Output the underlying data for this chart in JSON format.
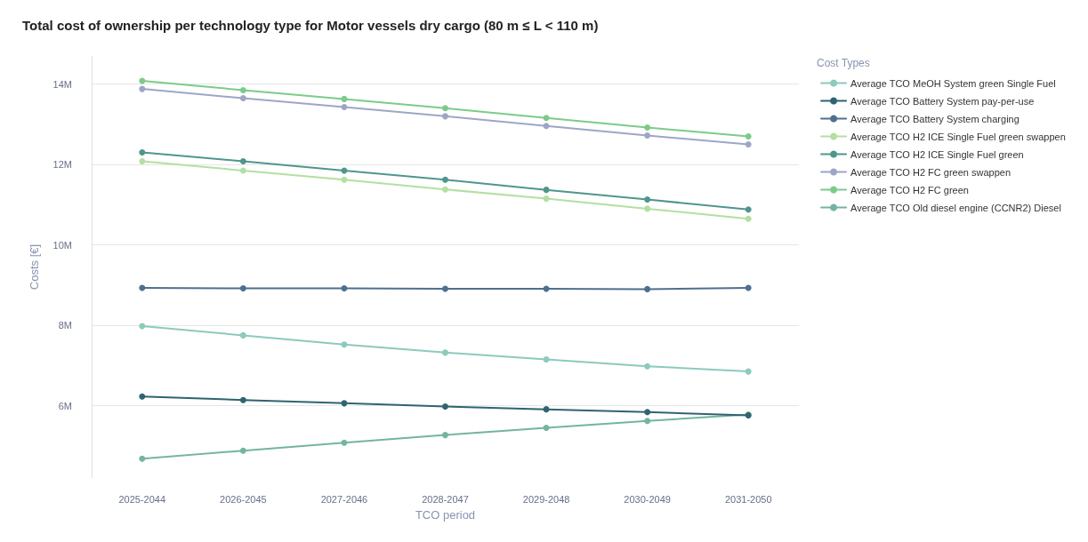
{
  "chart_data": {
    "type": "line",
    "title": "Total cost of ownership per technology type for Motor vessels dry cargo (80 m ≤ L < 110 m)",
    "xlabel": "TCO period",
    "ylabel": "Costs [€]",
    "legend_title": "Cost Types",
    "categories": [
      "2025-2044",
      "2026-2045",
      "2027-2046",
      "2028-2047",
      "2029-2048",
      "2030-2049",
      "2031-2050"
    ],
    "series": [
      {
        "name": "Average TCO MeOH System green Single Fuel",
        "color": "#8ccabd",
        "values": [
          7.98,
          7.75,
          7.52,
          7.32,
          7.15,
          6.98,
          6.85
        ]
      },
      {
        "name": "Average TCO Battery System pay-per-use",
        "color": "#2f6470",
        "values": [
          6.23,
          6.14,
          6.06,
          5.98,
          5.91,
          5.84,
          5.76
        ]
      },
      {
        "name": "Average TCO Battery System charging",
        "color": "#4f6f8f",
        "values": [
          8.93,
          8.92,
          8.92,
          8.91,
          8.91,
          8.9,
          8.93
        ]
      },
      {
        "name": "Average TCO H2 ICE Single Fuel green swappen",
        "color": "#b3e0a0",
        "values": [
          12.08,
          11.85,
          11.62,
          11.38,
          11.15,
          10.9,
          10.65
        ]
      },
      {
        "name": "Average TCO H2 ICE Single Fuel green",
        "color": "#4f968c",
        "values": [
          12.3,
          12.08,
          11.85,
          11.62,
          11.37,
          11.13,
          10.88
        ]
      },
      {
        "name": "Average TCO H2 FC green swappen",
        "color": "#9ea6c6",
        "values": [
          13.88,
          13.65,
          13.43,
          13.2,
          12.96,
          12.72,
          12.5
        ]
      },
      {
        "name": "Average TCO H2 FC green",
        "color": "#7ccb8a",
        "values": [
          14.08,
          13.85,
          13.63,
          13.4,
          13.16,
          12.92,
          12.7
        ]
      },
      {
        "name": "Average TCO Old diesel engine (CCNR2) Diesel",
        "color": "#74b4a2",
        "values": [
          4.68,
          4.88,
          5.08,
          5.27,
          5.45,
          5.62,
          5.78
        ]
      }
    ],
    "ylim": [
      4.2,
      14.7
    ],
    "yticks": [
      {
        "value": 6,
        "label": "6M"
      },
      {
        "value": 8,
        "label": "8M"
      },
      {
        "value": 10,
        "label": "10M"
      },
      {
        "value": 12,
        "label": "12M"
      },
      {
        "value": 14,
        "label": "14M"
      }
    ],
    "grid": "y",
    "legend": "top right",
    "marker": "circle",
    "line_style": "solid"
  }
}
